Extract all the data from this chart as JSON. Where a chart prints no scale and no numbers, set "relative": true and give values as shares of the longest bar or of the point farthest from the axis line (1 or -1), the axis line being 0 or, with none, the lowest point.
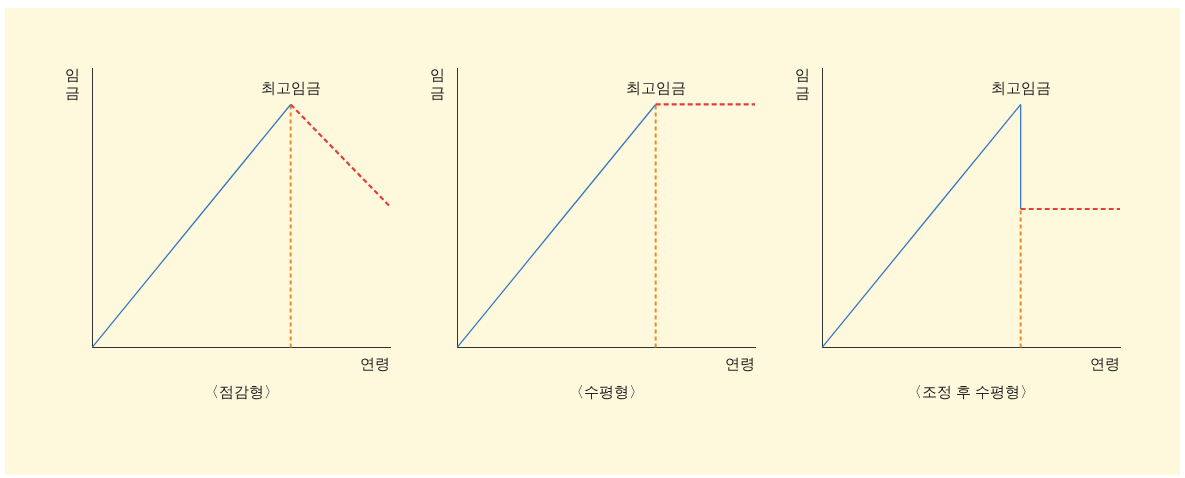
{
  "chart_data": [
    {
      "type": "line",
      "title": "〈점감형〉",
      "xlabel": "연령",
      "ylabel": "임금",
      "relative": true,
      "grid": false,
      "legend": false,
      "marker": "none",
      "annotations": [
        "최고임금"
      ],
      "categories": [
        null,
        null,
        null,
        null
      ],
      "series": [
        {
          "color": "#3a78c2",
          "values": [
            0,
            0.5,
            1,
            null
          ],
          "line_style": "solid"
        },
        {
          "color": "#e0403a",
          "values": [
            null,
            null,
            1,
            0.58
          ],
          "line_style": "dashed"
        }
      ]
    },
    {
      "type": "line",
      "title": "〈수평형〉",
      "xlabel": "연령",
      "ylabel": "임금",
      "relative": true,
      "grid": false,
      "legend": false,
      "marker": "none",
      "annotations": [
        "최고임금"
      ],
      "categories": [
        null,
        null,
        null,
        null
      ],
      "series": [
        {
          "color": "#3a78c2",
          "values": [
            0,
            0.5,
            1,
            null
          ],
          "line_style": "solid"
        },
        {
          "color": "#e0403a",
          "values": [
            null,
            null,
            1,
            1
          ],
          "line_style": "dashed"
        }
      ]
    },
    {
      "type": "line",
      "title": "〈조정 후 수평형〉",
      "xlabel": "연령",
      "ylabel": "임금",
      "relative": true,
      "grid": false,
      "legend": false,
      "marker": "none",
      "annotations": [
        "최고임금"
      ],
      "categories": [
        null,
        null,
        null,
        null
      ],
      "series": [
        {
          "color": "#3a78c2",
          "values": [
            0,
            0.5,
            1,
            null
          ],
          "line_style": "solid"
        },
        {
          "color": "#e0403a",
          "values": [
            null,
            null,
            0.57,
            0.57
          ],
          "line_style": "dashed"
        }
      ]
    }
  ]
}
